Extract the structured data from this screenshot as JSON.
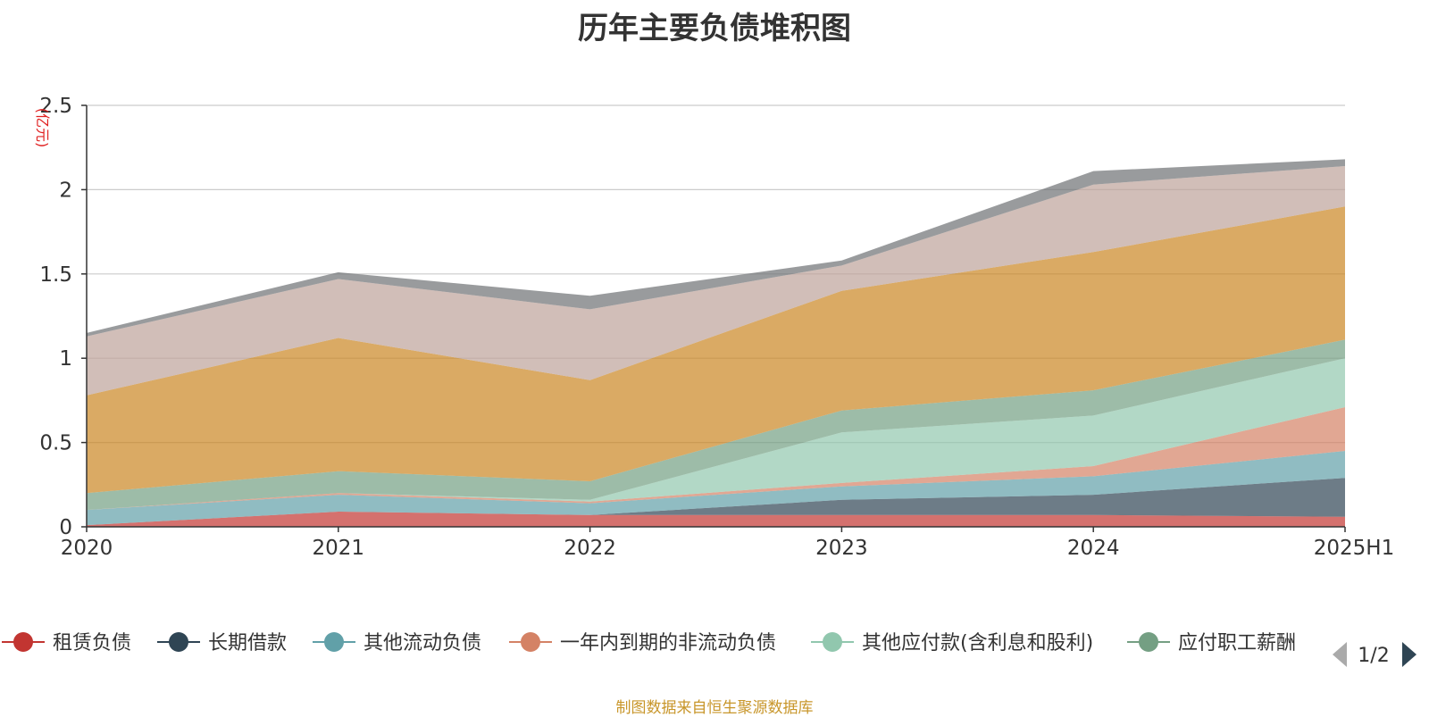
{
  "title": "历年主要负债堆积图",
  "source_note": "制图数据来自恒生聚源数据库",
  "legend_pager": {
    "text": "1/2"
  },
  "chart_data": {
    "type": "area",
    "stacked": true,
    "title": "历年主要负债堆积图",
    "ylabel": "(亿元)",
    "ylim": [
      0,
      2.5
    ],
    "yticks": [
      "0",
      "0.5",
      "1",
      "1.5",
      "2",
      "2.5"
    ],
    "ytick_values": [
      0,
      0.5,
      1,
      1.5,
      2,
      2.5
    ],
    "categories": [
      "2020",
      "2021",
      "2022",
      "2023",
      "2024",
      "2025H1"
    ],
    "grid": true,
    "legend_position": "bottom",
    "series": [
      {
        "name": "租赁负债",
        "color": "#c23531",
        "legend": true,
        "values": [
          0.01,
          0.09,
          0.07,
          0.07,
          0.07,
          0.06
        ]
      },
      {
        "name": "长期借款",
        "color": "#2f4554",
        "legend": true,
        "values": [
          0.0,
          0.0,
          0.0,
          0.09,
          0.12,
          0.23
        ]
      },
      {
        "name": "其他流动负债",
        "color": "#61a0a8",
        "legend": true,
        "values": [
          0.09,
          0.1,
          0.07,
          0.08,
          0.11,
          0.16
        ]
      },
      {
        "name": "一年内到期的非流动负债",
        "color": "#d48265",
        "legend": true,
        "values": [
          0.0,
          0.01,
          0.01,
          0.02,
          0.06,
          0.26
        ]
      },
      {
        "name": "其他应付款(含利息和股利)",
        "color": "#91c7ae",
        "legend": true,
        "values": [
          0.0,
          0.0,
          0.01,
          0.3,
          0.3,
          0.29
        ]
      },
      {
        "name": "应付职工薪酬",
        "color": "#749f83",
        "legend": true,
        "legend_text": "应付职工薪酬",
        "values": [
          0.1,
          0.13,
          0.11,
          0.13,
          0.15,
          0.11
        ]
      },
      {
        "name": "",
        "color": "#ca8622",
        "legend": false,
        "values": [
          0.58,
          0.79,
          0.6,
          0.71,
          0.82,
          0.79
        ]
      },
      {
        "name": "",
        "color": "#bda29a",
        "legend": false,
        "values": [
          0.35,
          0.35,
          0.42,
          0.15,
          0.4,
          0.24
        ]
      },
      {
        "name": "",
        "color": "#6e7074",
        "legend": false,
        "values": [
          0.02,
          0.04,
          0.08,
          0.03,
          0.08,
          0.04
        ]
      }
    ]
  }
}
